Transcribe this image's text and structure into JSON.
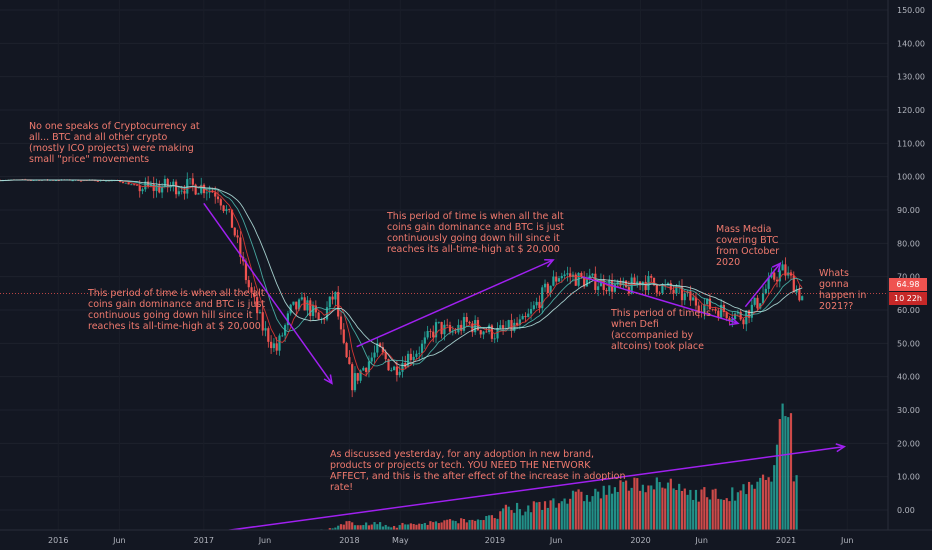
{
  "chart_data": {
    "type": "candlestick",
    "y_ticks": [
      "150.00",
      "140.00",
      "130.00",
      "120.00",
      "110.00",
      "100.00",
      "90.00",
      "80.00",
      "70.00",
      "60.00",
      "50.00",
      "40.00",
      "30.00",
      "20.00",
      "10.00",
      "0.00"
    ],
    "x_ticks": [
      "2016",
      "Jun",
      "2017",
      "Jun",
      "2018",
      "May",
      "2019",
      "Jun",
      "2020",
      "Jun",
      "2021",
      "Jun"
    ],
    "ylim": [
      -6,
      153
    ],
    "x_range": [
      2015.6,
      2021.7
    ],
    "dominance_path": [
      [
        2015.6,
        99
      ],
      [
        2016.0,
        99
      ],
      [
        2016.4,
        98.8
      ],
      [
        2016.6,
        96.5
      ],
      [
        2016.8,
        97.2
      ],
      [
        2017.0,
        97
      ],
      [
        2017.1,
        95
      ],
      [
        2017.2,
        85
      ],
      [
        2017.3,
        68
      ],
      [
        2017.4,
        55
      ],
      [
        2017.5,
        48
      ],
      [
        2017.6,
        60
      ],
      [
        2017.7,
        62
      ],
      [
        2017.8,
        56
      ],
      [
        2017.9,
        65
      ],
      [
        2017.95,
        50
      ],
      [
        2018.02,
        38
      ],
      [
        2018.1,
        43
      ],
      [
        2018.2,
        48
      ],
      [
        2018.3,
        42
      ],
      [
        2018.4,
        46
      ],
      [
        2018.5,
        49
      ],
      [
        2018.6,
        55
      ],
      [
        2018.7,
        53
      ],
      [
        2018.8,
        56
      ],
      [
        2019.0,
        53
      ],
      [
        2019.2,
        56
      ],
      [
        2019.35,
        66
      ],
      [
        2019.45,
        71
      ],
      [
        2019.6,
        69
      ],
      [
        2019.75,
        68
      ],
      [
        2019.9,
        66
      ],
      [
        2020.0,
        69
      ],
      [
        2020.2,
        66
      ],
      [
        2020.4,
        62
      ],
      [
        2020.55,
        60
      ],
      [
        2020.7,
        58
      ],
      [
        2020.8,
        62
      ],
      [
        2020.9,
        69
      ],
      [
        2020.98,
        72
      ],
      [
        2021.05,
        68
      ],
      [
        2021.1,
        64
      ]
    ],
    "volume_path": [
      [
        2015.6,
        -9
      ],
      [
        2017.6,
        -8.5
      ],
      [
        2017.9,
        -6
      ],
      [
        2018.0,
        -4
      ],
      [
        2018.3,
        -5
      ],
      [
        2018.6,
        -4
      ],
      [
        2018.9,
        -3
      ],
      [
        2019.2,
        -1
      ],
      [
        2019.4,
        2
      ],
      [
        2019.6,
        3
      ],
      [
        2019.8,
        5
      ],
      [
        2020.0,
        7
      ],
      [
        2020.2,
        6
      ],
      [
        2020.4,
        4
      ],
      [
        2020.6,
        3
      ],
      [
        2020.8,
        6
      ],
      [
        2020.95,
        12
      ],
      [
        2021.0,
        24
      ],
      [
        2021.05,
        10
      ]
    ],
    "current_value_label": "64.98",
    "countdown_label": "10 22h",
    "trend_arrows": [
      {
        "from": [
          2017.0,
          92
        ],
        "to": [
          2017.88,
          38
        ],
        "color": "#a020f0"
      },
      {
        "from": [
          2018.05,
          49
        ],
        "to": [
          2019.4,
          75
        ],
        "color": "#a020f0"
      },
      {
        "from": [
          2019.6,
          70
        ],
        "to": [
          2020.67,
          56
        ],
        "color": "#a020f0"
      },
      {
        "from": [
          2020.72,
          61
        ],
        "to": [
          2020.96,
          74
        ],
        "color": "#a020f0"
      },
      {
        "from": [
          2017.1,
          -6.5
        ],
        "to": [
          2021.4,
          19
        ],
        "color": "#a020f0"
      }
    ],
    "annotations": [
      "No one speaks of Cryptocurrency at all... BTC and all other crypto (mostly ICO projects) were making small \"price\" movements",
      "This period of time is when all the alt coins gain dominance and BTC is just continuous going down hill since it reaches its all-time-high at $ 20,000",
      "This period of time is when all the alt coins gain dominance and BTC is just continuously going down hill since it reaches its all-time-high at $ 20,000",
      "Mass Media covering BTC from October 2020",
      "Whats gonna happen in 2021??",
      "This period of time is when Defi (accompanied by altcoins) took place",
      "As discussed yesterday, for any adoption in new brand, products or projects or tech. YOU NEED THE NETWORK AFFECT, and this is the after effect of the increase in adoption rate!"
    ],
    "colors": {
      "background": "#131722",
      "up": "#26a69a",
      "down": "#ef5350",
      "annotation": "#f07a6e",
      "arrow": "#a020f0",
      "ma_red": "#e53935",
      "ma_teal": "#4db6ac",
      "ma_pale": "#b2dfdb"
    }
  }
}
